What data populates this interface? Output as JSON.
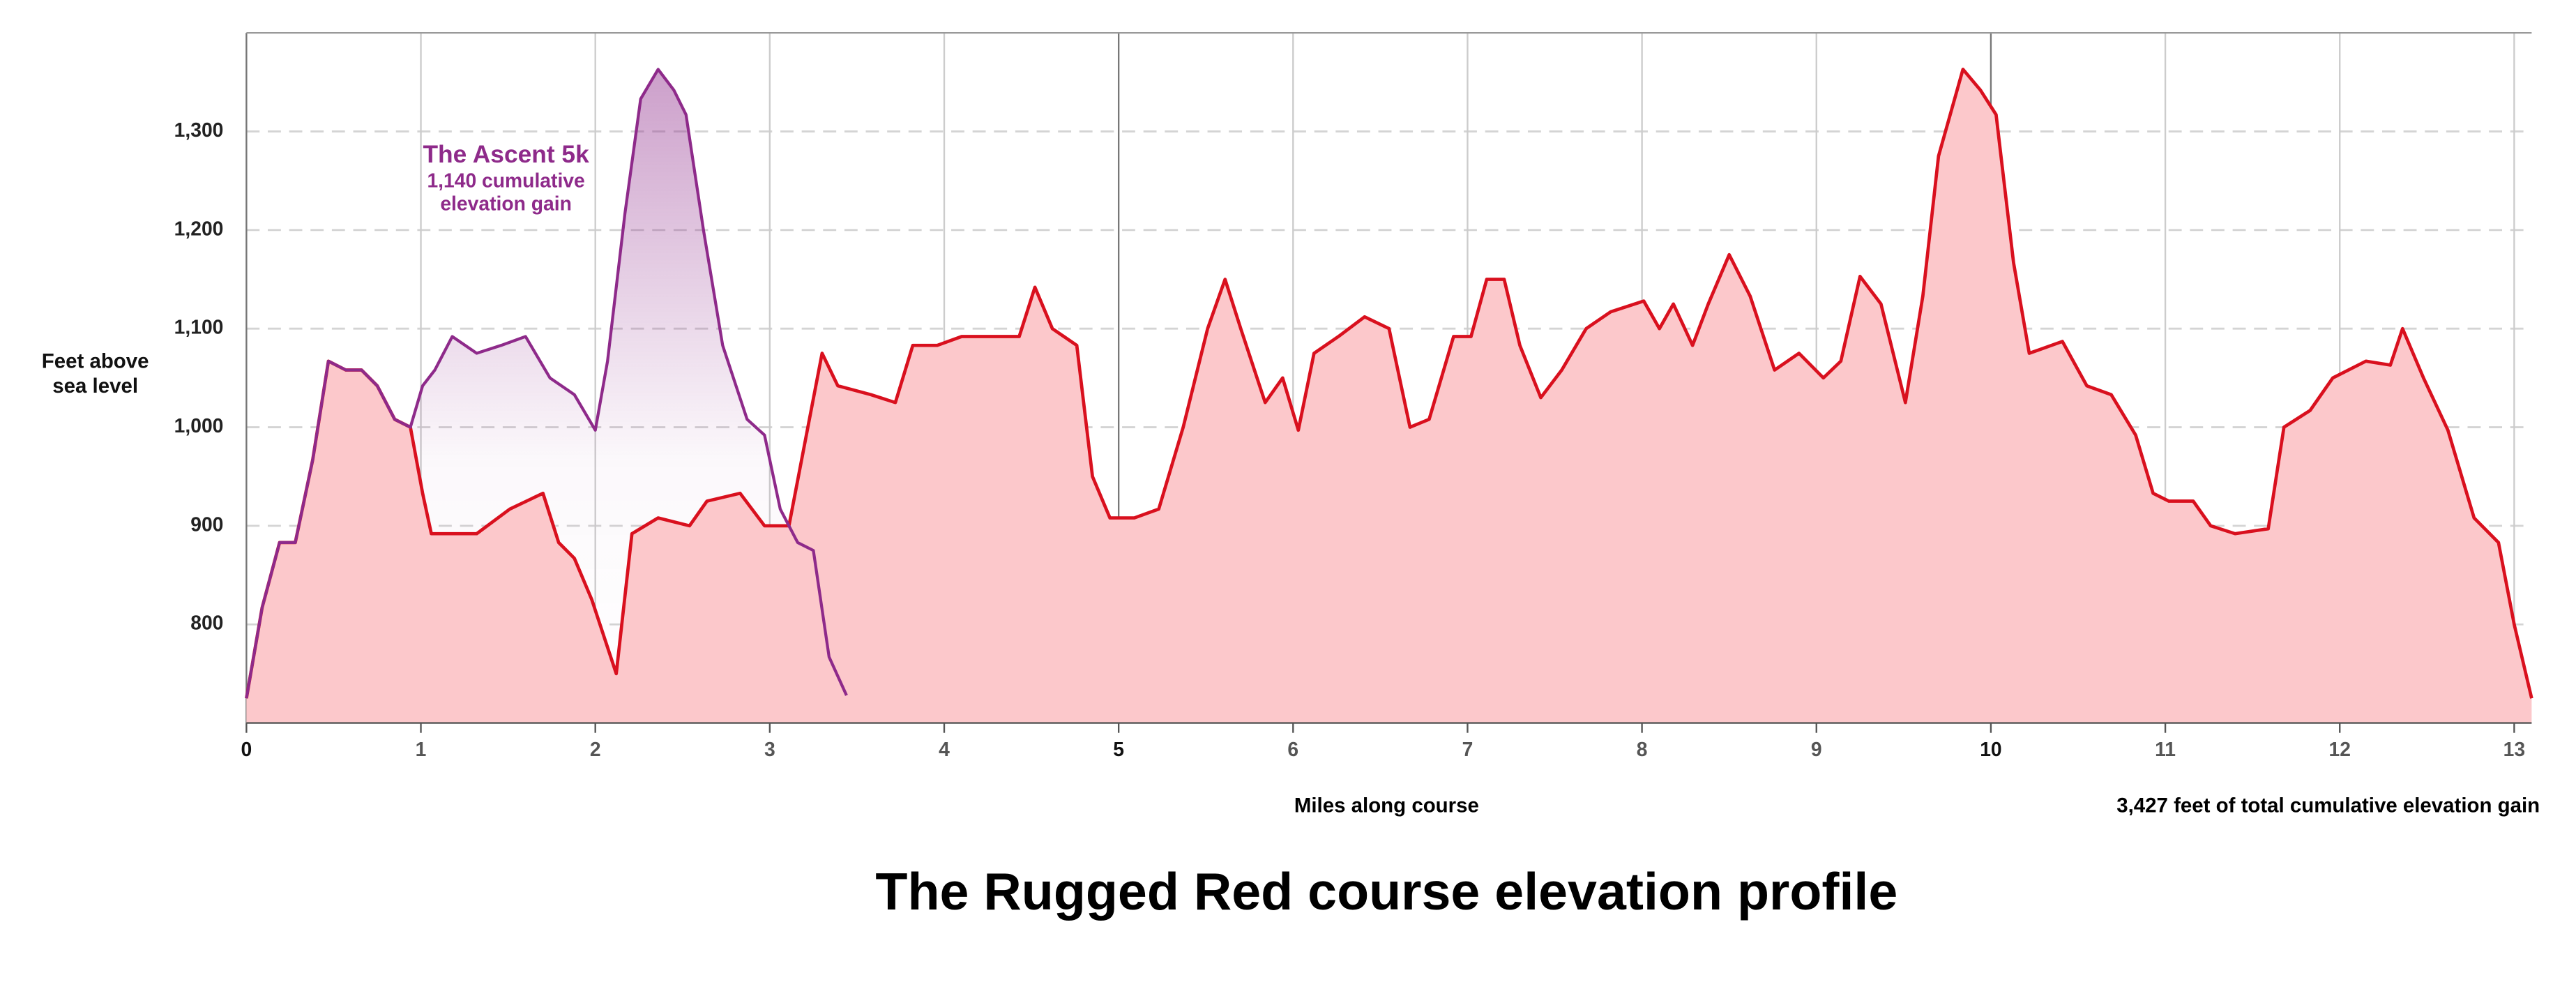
{
  "chart_data": {
    "type": "area",
    "title": "The Rugged Red course elevation profile",
    "x_label": "Miles along course",
    "y_label": "Feet above sea level",
    "annotations": [
      "1,140 cumulative elevation gain",
      "3,427 feet of total cumulative elevation gain"
    ],
    "xlim": [
      0,
      13.1
    ],
    "ylim": [
      700,
      1400
    ],
    "xticks": [
      0,
      1,
      2,
      3,
      4,
      5,
      6,
      7,
      8,
      9,
      10,
      11,
      12,
      13
    ],
    "yticks": [
      800,
      900,
      {
        "value": 1000,
        "label": "1,000"
      },
      {
        "value": 1100,
        "label": "1,100"
      },
      {
        "value": 1200,
        "label": "1,200"
      },
      {
        "value": 1300,
        "label": "1,300"
      }
    ],
    "grid": true,
    "series": [
      {
        "color": "#d9101e",
        "x": [
          0,
          0.09,
          0.19,
          0.28,
          0.38,
          0.47,
          0.57,
          0.66,
          0.75,
          0.85,
          0.94,
          1.01,
          1.06,
          1.18,
          1.32,
          1.51,
          1.7,
          1.79,
          1.88,
          1.98,
          2.12,
          2.21,
          2.36,
          2.54,
          2.64,
          2.83,
          2.97,
          3.11,
          3.2,
          3.3,
          3.39,
          3.58,
          3.72,
          3.82,
          3.96,
          4.1,
          4.24,
          4.43,
          4.52,
          4.62,
          4.76,
          4.85,
          4.95,
          5.09,
          5.23,
          5.37,
          5.51,
          5.61,
          5.7,
          5.84,
          5.94,
          6.03,
          6.12,
          6.26,
          6.41,
          6.55,
          6.67,
          6.78,
          6.92,
          7.02,
          7.11,
          7.21,
          7.3,
          7.42,
          7.54,
          7.68,
          7.82,
          8.01,
          8.1,
          8.18,
          8.29,
          8.38,
          8.5,
          8.62,
          8.76,
          8.9,
          9.04,
          9.14,
          9.25,
          9.37,
          9.51,
          9.61,
          9.7,
          9.84,
          9.94,
          10.03,
          10.13,
          10.22,
          10.41,
          10.55,
          10.69,
          10.83,
          10.93,
          11.02,
          11.16,
          11.26,
          11.4,
          11.59,
          11.68,
          11.83,
          11.96,
          12.15,
          12.29,
          12.36,
          12.48,
          12.62,
          12.77,
          12.91,
          13.0,
          13.1
        ],
        "values": [
          725,
          817,
          883,
          883,
          967,
          1067,
          1058,
          1058,
          1042,
          1008,
          1000,
          933,
          892,
          892,
          892,
          917,
          933,
          883,
          867,
          825,
          750,
          892,
          908,
          900,
          925,
          933,
          900,
          900,
          983,
          1075,
          1042,
          1033,
          1025,
          1083,
          1083,
          1092,
          1092,
          1092,
          1142,
          1100,
          1083,
          950,
          908,
          908,
          917,
          1000,
          1100,
          1150,
          1100,
          1025,
          1050,
          997,
          1075,
          1092,
          1112,
          1100,
          1000,
          1008,
          1092,
          1092,
          1150,
          1150,
          1083,
          1030,
          1058,
          1100,
          1117,
          1128,
          1100,
          1125,
          1083,
          1125,
          1175,
          1133,
          1058,
          1075,
          1050,
          1067,
          1153,
          1125,
          1025,
          1133,
          1275,
          1363,
          1342,
          1317,
          1167,
          1075,
          1087,
          1042,
          1033,
          992,
          933,
          925,
          925,
          900,
          892,
          897,
          1000,
          1017,
          1050,
          1067,
          1063,
          1100,
          1050,
          997,
          908,
          883,
          800,
          725
        ]
      },
      {
        "name": "The Ascent 5k",
        "color": "#8e2a8a",
        "x": [
          0,
          0.09,
          0.19,
          0.28,
          0.38,
          0.47,
          0.57,
          0.66,
          0.75,
          0.85,
          0.94,
          1.01,
          1.08,
          1.18,
          1.32,
          1.46,
          1.6,
          1.74,
          1.88,
          2.0,
          2.07,
          2.17,
          2.26,
          2.36,
          2.45,
          2.52,
          2.62,
          2.73,
          2.87,
          2.97,
          3.06,
          3.16,
          3.25,
          3.34,
          3.44
        ],
        "values": [
          725,
          817,
          883,
          883,
          967,
          1067,
          1058,
          1058,
          1042,
          1008,
          1000,
          1042,
          1058,
          1092,
          1075,
          1083,
          1092,
          1050,
          1033,
          997,
          1067,
          1217,
          1333,
          1363,
          1342,
          1317,
          1200,
          1083,
          1008,
          992,
          917,
          883,
          875,
          767,
          728
        ]
      }
    ]
  }
}
